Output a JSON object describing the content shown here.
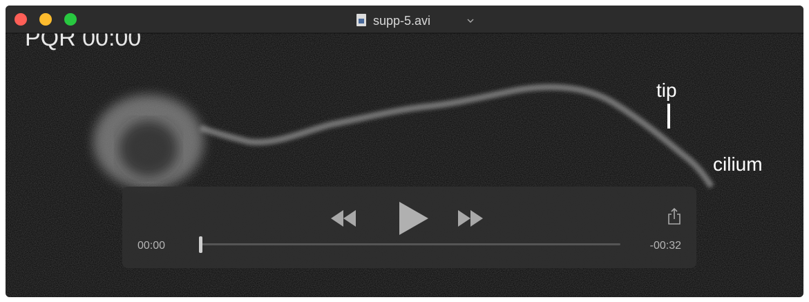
{
  "window": {
    "title": "supp-5.avi"
  },
  "video": {
    "overlays": {
      "timestamp": "PQR 00:00",
      "tip": "tip",
      "cilium": "cilium"
    }
  },
  "controls": {
    "elapsed": "00:00",
    "remaining": "-00:32"
  }
}
